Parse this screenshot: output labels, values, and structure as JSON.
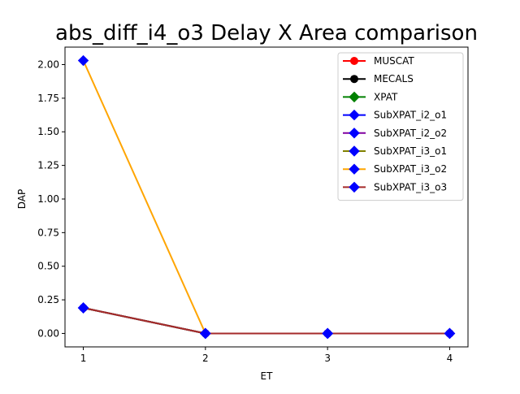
{
  "chart_data": {
    "type": "line",
    "title": "abs_diff_i4_o3 Delay X Area comparison",
    "xlabel": "ET",
    "ylabel": "DAP",
    "x": [
      1,
      2,
      3,
      4
    ],
    "xlim": [
      0.85,
      4.15
    ],
    "ylim": [
      -0.1,
      2.13
    ],
    "xticks": [
      "1",
      "2",
      "3",
      "4"
    ],
    "yticks": [
      "0.00",
      "0.25",
      "0.50",
      "0.75",
      "1.00",
      "1.25",
      "1.50",
      "1.75",
      "2.00"
    ],
    "legend_position": "top-right",
    "grid": false,
    "series": [
      {
        "name": "MUSCAT",
        "color": "#ff0000",
        "marker": "circle",
        "values": [
          0.19,
          0.0,
          0.0,
          0.0
        ]
      },
      {
        "name": "MECALS",
        "color": "#000000",
        "marker": "circle",
        "values": [
          0.19,
          0.0,
          0.0,
          0.0
        ]
      },
      {
        "name": "XPAT",
        "color": "#008000",
        "marker": "diamond",
        "values": [
          0.19,
          0.0,
          0.0,
          0.0
        ]
      },
      {
        "name": "SubXPAT_i2_o1",
        "color": "#0000ff",
        "marker": "diamond",
        "values": [
          0.19,
          0.0,
          0.0,
          0.0
        ]
      },
      {
        "name": "SubXPAT_i2_o2",
        "color": "#8000a0",
        "marker": "diamond",
        "values": [
          0.19,
          0.0,
          0.0,
          0.0
        ]
      },
      {
        "name": "SubXPAT_i3_o1",
        "color": "#808000",
        "marker": "diamond",
        "values": [
          0.19,
          0.0,
          0.0,
          0.0
        ]
      },
      {
        "name": "SubXPAT_i3_o2",
        "color": "#ffa500",
        "marker": "diamond",
        "values": [
          2.03,
          0.0,
          0.0,
          0.0
        ]
      },
      {
        "name": "SubXPAT_i3_o3",
        "color": "#a52a2a",
        "marker": "diamond",
        "values": [
          0.19,
          0.0,
          0.0,
          0.0
        ]
      }
    ],
    "marker_fill": "#0000ff"
  }
}
